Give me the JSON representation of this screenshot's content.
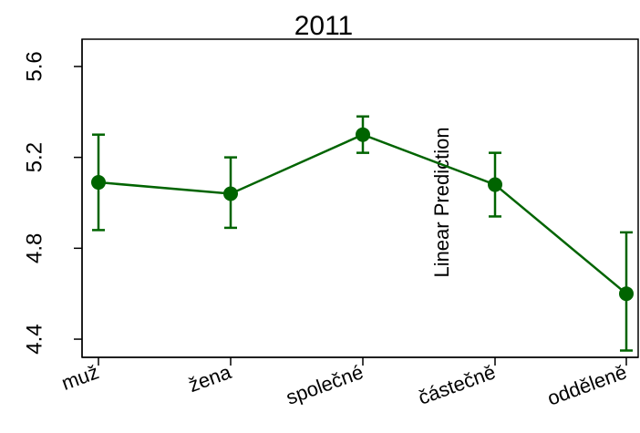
{
  "chart_data": {
    "type": "line",
    "title": "2011",
    "xlabel": "",
    "ylabel": "Linear Prediction",
    "categories": [
      "muž",
      "žena",
      "společné",
      "částečně",
      "odděleně"
    ],
    "series": [
      {
        "values": [
          5.09,
          5.04,
          5.3,
          5.08,
          4.6
        ],
        "ci_low": [
          4.88,
          4.89,
          5.22,
          4.94,
          4.35
        ],
        "ci_high": [
          5.3,
          5.2,
          5.38,
          5.22,
          4.87
        ]
      }
    ],
    "yticks": [
      "4.4",
      "4.8",
      "5.2",
      "5.6"
    ],
    "ylim": [
      4.32,
      5.72
    ],
    "grid": false,
    "legend": "none",
    "color": "#006400"
  }
}
